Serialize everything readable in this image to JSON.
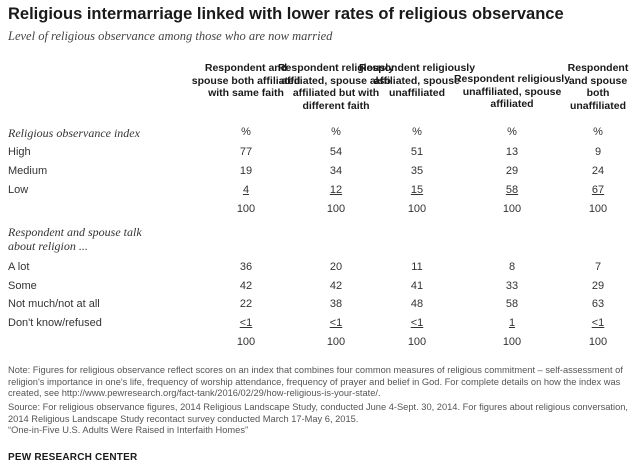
{
  "title": "Religious intermarriage linked with lower rates of religious observance",
  "subtitle": "Level of religious observance among those who are now married",
  "columns": [
    "Respondent and spouse both affiliated with same faith",
    "Respondent religiously affiliated, spouse also affiliated but with different faith",
    "Respondent religiously affiliated, spouse unaffiliated",
    "Respondent religiously unaffiliated, spouse affiliated",
    "Respondent and spouse both unaffiliated"
  ],
  "section1": {
    "label": "Religious observance index",
    "header_row": [
      "%",
      "%",
      "%",
      "%",
      "%"
    ],
    "rows": [
      {
        "label": "High",
        "values": [
          "77",
          "54",
          "51",
          "13",
          "9"
        ]
      },
      {
        "label": "Medium",
        "values": [
          "19",
          "34",
          "35",
          "29",
          "24"
        ]
      },
      {
        "label": "Low",
        "values": [
          "4",
          "12",
          "15",
          "58",
          "67"
        ]
      }
    ],
    "total": [
      "100",
      "100",
      "100",
      "100",
      "100"
    ]
  },
  "section2": {
    "label": "Respondent and spouse talk about religion ...",
    "rows": [
      {
        "label": "A lot",
        "values": [
          "36",
          "20",
          "11",
          "8",
          "7"
        ]
      },
      {
        "label": "Some",
        "values": [
          "42",
          "42",
          "41",
          "33",
          "29"
        ]
      },
      {
        "label": "Not much/not at all",
        "values": [
          "22",
          "38",
          "48",
          "58",
          "63"
        ]
      },
      {
        "label": "Don't know/refused",
        "values": [
          "<1",
          "<1",
          "<1",
          "1",
          "<1"
        ]
      }
    ],
    "total": [
      "100",
      "100",
      "100",
      "100",
      "100"
    ]
  },
  "note": "Note: Figures for religious observance reflect scores on an index that combines four common measures of religious commitment – self-assessment of religion's importance in one's life, frequency of worship attendance, frequency of prayer and belief in God. For complete details on how the index was created, see http://www.pewresearch.org/fact-tank/2016/02/29/how-religious-is-your-state/.",
  "source": "Source: For religious observance figures, 2014 Religious Landscape Study, conducted June 4-Sept. 30, 2014. For figures about religious conversation, 2014 Religious Landscape Study recontact survey conducted March 17-May 6, 2015.",
  "report": "“One-in-Five U.S. Adults Were Raised in Interfaith Homes”",
  "footer": "PEW RESEARCH CENTER"
}
